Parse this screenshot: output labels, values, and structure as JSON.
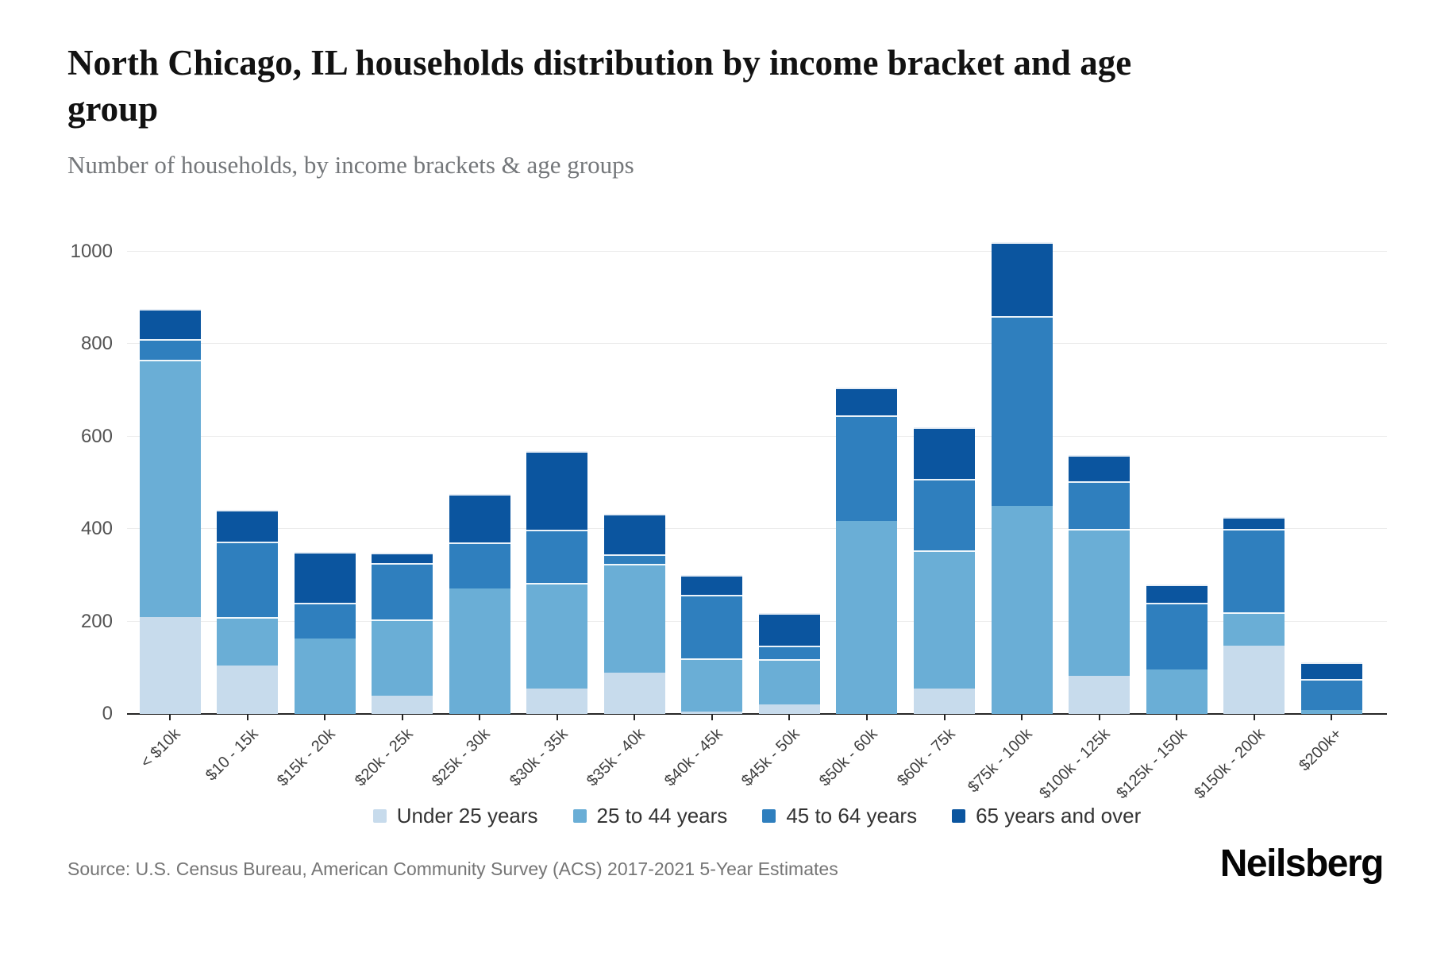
{
  "header": {
    "title": "North Chicago, IL households distribution by income bracket and age group",
    "subtitle": "Number of households, by income brackets & age groups"
  },
  "footer": {
    "source": "Source: U.S. Census Bureau, American Community Survey (ACS) 2017-2021 5-Year Estimates",
    "brand": "Neilsberg"
  },
  "chart_data": {
    "type": "bar",
    "stacked": true,
    "title": "North Chicago, IL households distribution by income bracket and age group",
    "xlabel": "",
    "ylabel": "Number of households",
    "ylim": [
      0,
      1050
    ],
    "yticks": [
      0,
      200,
      400,
      600,
      800,
      1000
    ],
    "grid": "horizontal",
    "legend_position": "bottom",
    "categories": [
      "< $10k",
      "$10 - 15k",
      "$15k - 20k",
      "$20k - 25k",
      "$25k - 30k",
      "$30k - 35k",
      "$35k - 40k",
      "$40k - 45k",
      "$45k - 50k",
      "$50k - 60k",
      "$60k - 75k",
      "$75k - 100k",
      "$100k - 125k",
      "$125k - 150k",
      "$150k - 200k",
      "$200k+"
    ],
    "series": [
      {
        "name": "Under 25 years",
        "color": "#c7dbec",
        "values": [
          210,
          105,
          0,
          40,
          0,
          55,
          90,
          5,
          20,
          0,
          55,
          0,
          82,
          0,
          148,
          0
        ]
      },
      {
        "name": "25 to 44 years",
        "color": "#6aaed6",
        "values": [
          555,
          105,
          163,
          165,
          272,
          228,
          235,
          115,
          99,
          418,
          298,
          450,
          318,
          97,
          72,
          8
        ]
      },
      {
        "name": "45 to 64 years",
        "color": "#2f7fbe",
        "values": [
          45,
          162,
          77,
          122,
          98,
          115,
          20,
          137,
          29,
          227,
          155,
          410,
          103,
          143,
          180,
          67
        ]
      },
      {
        "name": "65 years and over",
        "color": "#0b559f",
        "values": [
          65,
          70,
          110,
          21,
          106,
          170,
          88,
          43,
          70,
          60,
          112,
          160,
          57,
          40,
          25,
          37
        ]
      }
    ],
    "bar_totals": [
      875,
      442,
      350,
      348,
      476,
      568,
      433,
      300,
      218,
      705,
      620,
      1020,
      560,
      280,
      425,
      112
    ],
    "axis_color": "#262626",
    "gridline_color": "#ececec"
  }
}
